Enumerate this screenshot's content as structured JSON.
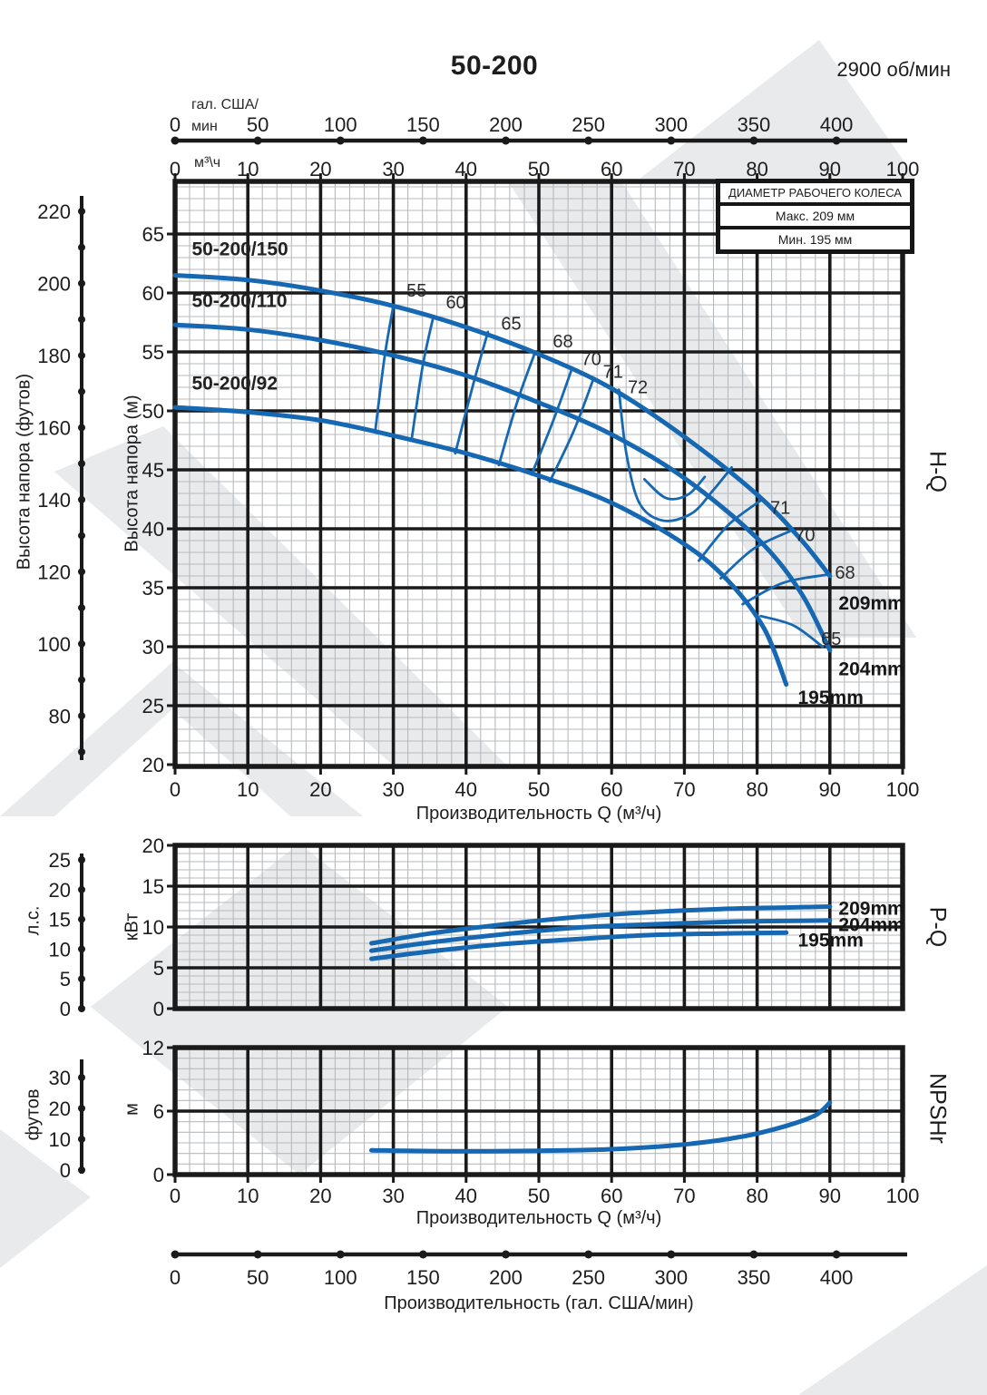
{
  "header": {
    "title": "50-200",
    "speed": "2900 об/мин"
  },
  "legend": {
    "title": "ДИАМЕТР РАБОЧЕГО КОЛЕСА",
    "rows": [
      "Макс. 209 мм",
      "Мин. 195 мм"
    ]
  },
  "side_labels": {
    "hq": "H-Q",
    "pq": "P-Q",
    "npsh": "NPSHr"
  },
  "colors": {
    "curve_blue": "#1668b2",
    "grid_major": "#1a1a1a",
    "grid_minor": "#b7babd",
    "watermark": "#e8eaec",
    "text": "#1d1d1d"
  },
  "gal_axis": {
    "unit_line1": "гал. США/",
    "unit_line2": "мин",
    "ticks": [
      0,
      50,
      100,
      150,
      200,
      250,
      300,
      350,
      400
    ],
    "title": "Производительность (гал. США/мин)"
  },
  "m3h_axis": {
    "unit": "м³\\ч",
    "title": "Производительность Q (м³/ч)"
  },
  "chart_data": [
    {
      "id": "hq",
      "type": "line",
      "title": "H-Q",
      "xlabel": "Производительность Q (м³/ч)",
      "ylabel_m": "Высота напора (м)",
      "ylabel_ft": "Высота напора (футов)",
      "xlim": [
        0,
        100
      ],
      "ylim_m": [
        20,
        69.6
      ],
      "grid": true,
      "x_ticks": [
        0,
        10,
        20,
        30,
        40,
        50,
        60,
        70,
        80,
        90,
        100
      ],
      "y_ticks_m": [
        65,
        60,
        55,
        50,
        45,
        40,
        35,
        30,
        25,
        20
      ],
      "y_ticks_ft": [
        220,
        200,
        180,
        160,
        140,
        120,
        100,
        80
      ],
      "series": [
        {
          "name": "209mm",
          "label": "50-200/150",
          "points": [
            [
              0,
              61.5
            ],
            [
              10,
              61.1
            ],
            [
              20,
              60.2
            ],
            [
              30,
              58.9
            ],
            [
              40,
              57.1
            ],
            [
              50,
              54.8
            ],
            [
              60,
              51.9
            ],
            [
              70,
              47.8
            ],
            [
              80,
              42.9
            ],
            [
              86,
              39.1
            ],
            [
              90,
              36.0
            ]
          ]
        },
        {
          "name": "204mm",
          "label": "50-200/110",
          "points": [
            [
              0,
              57.3
            ],
            [
              10,
              56.9
            ],
            [
              20,
              56.0
            ],
            [
              30,
              54.7
            ],
            [
              40,
              53.0
            ],
            [
              50,
              50.7
            ],
            [
              60,
              48.0
            ],
            [
              70,
              44.3
            ],
            [
              80,
              39.2
            ],
            [
              86,
              34.6
            ],
            [
              90,
              29.7
            ]
          ]
        },
        {
          "name": "195mm",
          "label": "50-200/92",
          "points": [
            [
              0,
              50.3
            ],
            [
              10,
              49.9
            ],
            [
              20,
              49.2
            ],
            [
              30,
              47.9
            ],
            [
              40,
              46.4
            ],
            [
              50,
              44.5
            ],
            [
              60,
              42.2
            ],
            [
              70,
              38.7
            ],
            [
              76,
              35.6
            ],
            [
              81,
              31.5
            ],
            [
              84,
              26.8
            ]
          ]
        }
      ],
      "efficiency_contours": [
        {
          "label": "55",
          "points": [
            [
              30,
              58.9
            ],
            [
              28.8,
              54.6
            ],
            [
              27.5,
              48.2
            ]
          ]
        },
        {
          "label": "60",
          "points": [
            [
              35.5,
              58.0
            ],
            [
              34.0,
              53.7
            ],
            [
              32.5,
              47.5
            ]
          ]
        },
        {
          "label": "65",
          "points": [
            [
              43,
              56.7
            ],
            [
              41,
              52.3
            ],
            [
              38.5,
              46.4
            ]
          ]
        },
        {
          "label": "68",
          "points": [
            [
              49.5,
              55.0
            ],
            [
              47,
              50.7
            ],
            [
              44.5,
              45.4
            ]
          ]
        },
        {
          "label": "70",
          "points": [
            [
              54.5,
              53.5
            ],
            [
              52,
              49.2
            ],
            [
              49,
              44.6
            ]
          ]
        },
        {
          "label": "71",
          "points": [
            [
              57.5,
              52.7
            ],
            [
              54.8,
              48.3
            ],
            [
              51.5,
              44.0
            ]
          ]
        },
        {
          "label": "72",
          "points": [
            [
              61,
              51.8
            ],
            [
              62,
              46.5
            ],
            [
              63.8,
              42.2
            ],
            [
              67,
              40.7
            ],
            [
              71,
              41.3
            ],
            [
              74,
              43.3
            ],
            [
              76.5,
              45.2
            ]
          ]
        },
        {
          "label": "",
          "points": [
            [
              64.5,
              44.2
            ],
            [
              67.5,
              42.6
            ],
            [
              70.5,
              42.9
            ],
            [
              72.8,
              44.4
            ]
          ]
        },
        {
          "label": "71",
          "points": [
            [
              72,
              37.3
            ],
            [
              76,
              40.3
            ],
            [
              80.5,
              42.4
            ]
          ]
        },
        {
          "label": "70",
          "points": [
            [
              75,
              35.8
            ],
            [
              79.5,
              38.3
            ],
            [
              84.5,
              39.8
            ]
          ]
        },
        {
          "label": "68",
          "points": [
            [
              78,
              33.6
            ],
            [
              83.5,
              35.4
            ],
            [
              89.5,
              36.1
            ]
          ]
        },
        {
          "label": "65",
          "points": [
            [
              80.5,
              32.6
            ],
            [
              85,
              31.8
            ],
            [
              89,
              30.0
            ]
          ]
        }
      ],
      "curve_name_labels": [
        {
          "text": "50-200/150",
          "q": 2.3,
          "m": 63.2
        },
        {
          "text": "50-200/110",
          "q": 2.3,
          "m": 58.8
        },
        {
          "text": "50-200/92",
          "q": 2.3,
          "m": 51.8
        }
      ],
      "efficiency_labels": [
        {
          "text": "55",
          "q": 33.2,
          "m": 59.7
        },
        {
          "text": "60",
          "q": 38.6,
          "m": 58.7
        },
        {
          "text": "65",
          "q": 46.2,
          "m": 56.9
        },
        {
          "text": "68",
          "q": 53.3,
          "m": 55.4
        },
        {
          "text": "70",
          "q": 57.2,
          "m": 53.9
        },
        {
          "text": "71",
          "q": 60.2,
          "m": 52.8
        },
        {
          "text": "72",
          "q": 63.6,
          "m": 51.5
        }
      ],
      "right_labels": [
        {
          "text": "71",
          "q": 81.8,
          "m": 41.8,
          "bold": false
        },
        {
          "text": "70",
          "q": 85.2,
          "m": 39.5,
          "bold": false
        },
        {
          "text": "68",
          "q": 90.7,
          "m": 36.3,
          "bold": false
        },
        {
          "text": "209mm",
          "q": 91.2,
          "m": 33.7,
          "bold": true
        },
        {
          "text": "65",
          "q": 88.8,
          "m": 30.7,
          "bold": false
        },
        {
          "text": "204mm",
          "q": 91.2,
          "m": 28.1,
          "bold": true
        },
        {
          "text": "195mm",
          "q": 85.6,
          "m": 25.7,
          "bold": true
        }
      ]
    },
    {
      "id": "pq",
      "type": "line",
      "title": "P-Q",
      "ylabel_kw": "кВт",
      "ylabel_hp": "л.с.",
      "ylim_kw": [
        0,
        20
      ],
      "grid": true,
      "y_ticks_kw": [
        20,
        15,
        10,
        5,
        0
      ],
      "y_ticks_hp": [
        25,
        20,
        15,
        10,
        5,
        0
      ],
      "series": [
        {
          "name": "209mm",
          "points": [
            [
              27,
              8.0
            ],
            [
              35,
              9.2
            ],
            [
              45,
              10.3
            ],
            [
              55,
              11.2
            ],
            [
              65,
              11.8
            ],
            [
              75,
              12.2
            ],
            [
              85,
              12.4
            ],
            [
              90,
              12.5
            ]
          ]
        },
        {
          "name": "204mm",
          "points": [
            [
              27,
              7.1
            ],
            [
              35,
              8.1
            ],
            [
              45,
              9.1
            ],
            [
              55,
              9.9
            ],
            [
              65,
              10.3
            ],
            [
              75,
              10.6
            ],
            [
              85,
              10.75
            ],
            [
              90,
              10.8
            ]
          ]
        },
        {
          "name": "195mm",
          "points": [
            [
              27,
              6.1
            ],
            [
              35,
              7.0
            ],
            [
              45,
              7.9
            ],
            [
              55,
              8.5
            ],
            [
              65,
              9.0
            ],
            [
              75,
              9.2
            ],
            [
              84,
              9.3
            ]
          ]
        }
      ],
      "labels": [
        {
          "text": "209mm",
          "q": 91.2,
          "kw": 12.3
        },
        {
          "text": "204mm",
          "q": 91.2,
          "kw": 10.3
        },
        {
          "text": "195mm",
          "q": 85.6,
          "kw": 8.4
        }
      ]
    },
    {
      "id": "npsh",
      "type": "line",
      "title": "NPSHr",
      "xlabel": "Производительность Q (м³/ч)",
      "ylabel_m": "м",
      "ylabel_ft": "футов",
      "ylim_m": [
        0,
        12
      ],
      "grid": true,
      "x_ticks": [
        0,
        10,
        20,
        30,
        40,
        50,
        60,
        70,
        80,
        90,
        100
      ],
      "y_ticks_m": [
        12,
        6,
        0
      ],
      "y_ticks_ft": [
        30,
        20,
        10,
        0
      ],
      "series": [
        {
          "name": "NPSHr",
          "points": [
            [
              27,
              2.3
            ],
            [
              38,
              2.2
            ],
            [
              50,
              2.25
            ],
            [
              60,
              2.4
            ],
            [
              70,
              2.85
            ],
            [
              78,
              3.6
            ],
            [
              84,
              4.6
            ],
            [
              88,
              5.6
            ],
            [
              90,
              6.8
            ]
          ]
        }
      ]
    }
  ]
}
